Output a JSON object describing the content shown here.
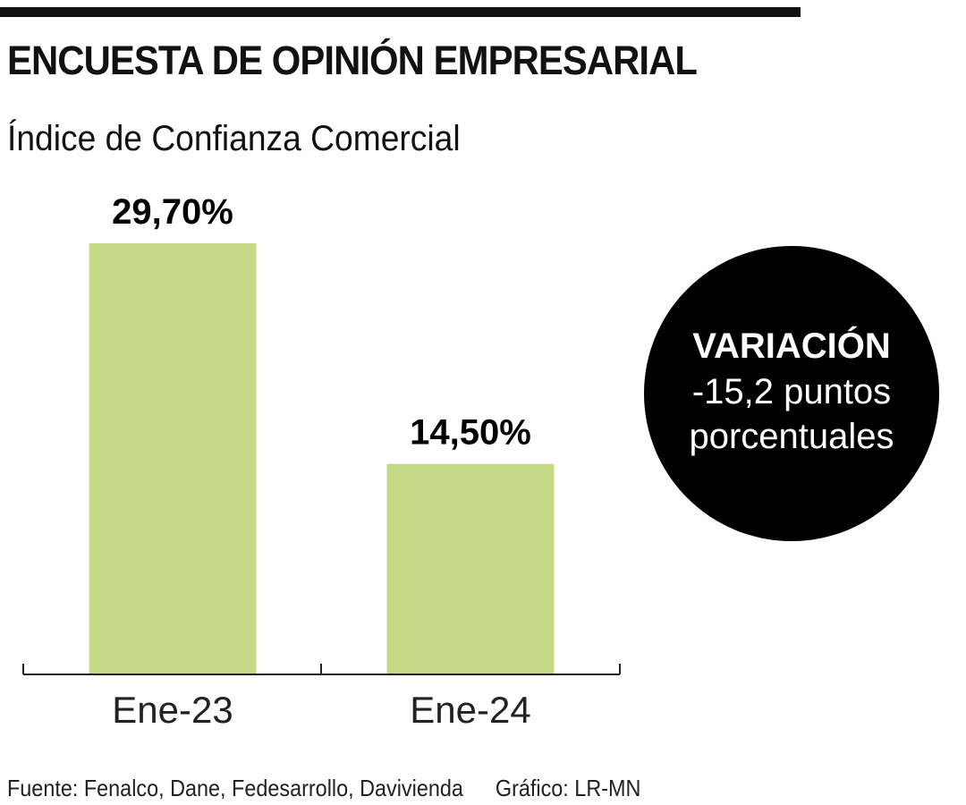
{
  "title": "ENCUESTA DE OPINIÓN EMPRESARIAL",
  "subtitle": "Índice de Confianza Comercial",
  "chart_data": {
    "type": "bar",
    "title": "Índice de Confianza Comercial",
    "categories": [
      "Ene-23",
      "Ene-24"
    ],
    "values": [
      29.7,
      14.5
    ],
    "value_labels": [
      "29,70%",
      "14,50%"
    ],
    "ylim": [
      0,
      29.7
    ],
    "xlabel": "",
    "ylabel": "",
    "bar_color": "#c5d987"
  },
  "callout": {
    "heading": "VARIACIÓN",
    "line1": "-15,2 puntos",
    "line2": "porcentuales"
  },
  "footer": {
    "source": "Fuente: Fenalco, Dane, Fedesarrollo, Davivienda",
    "credit": "Gráfico: LR-MN"
  }
}
